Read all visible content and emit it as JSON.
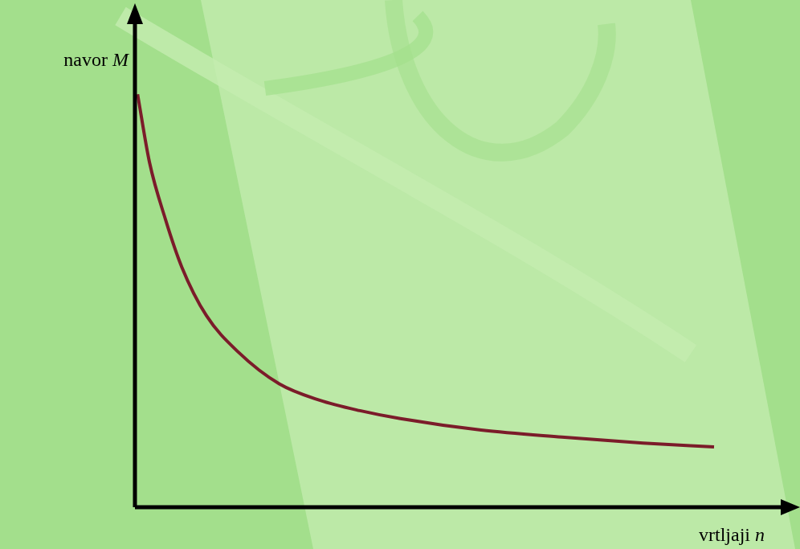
{
  "chart_data": {
    "type": "line",
    "x_label": "vrtljaji n",
    "y_label": "navor M",
    "x": [
      0.4,
      2.2,
      4.6,
      7.1,
      10.8,
      15.6,
      21.8,
      27.9,
      34.0,
      40.1,
      52.3,
      64.5,
      76.8,
      87.5
    ],
    "values": [
      83.0,
      69.3,
      57.9,
      48.2,
      38.5,
      31.2,
      24.8,
      21.5,
      19.4,
      17.8,
      15.5,
      14.1,
      12.9,
      12.1
    ],
    "color": "#7b1c2a",
    "xlim": [
      0,
      100
    ],
    "ylim": [
      0,
      100
    ],
    "grid": false,
    "tick_labels": false
  }
}
